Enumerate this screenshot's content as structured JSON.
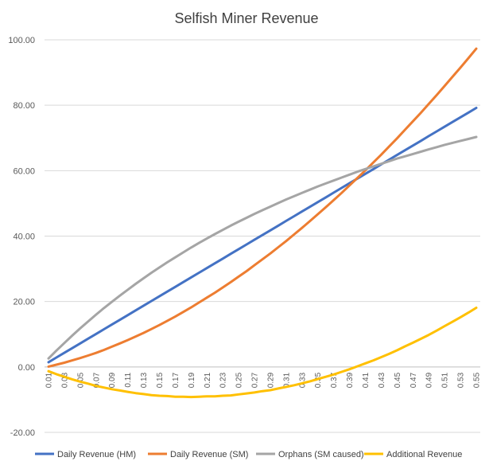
{
  "chart_data": {
    "type": "line",
    "title": "Selfish Miner Revenue",
    "xlabel": "",
    "ylabel": "",
    "ylim": [
      -20,
      100
    ],
    "ytick_labels": [
      "-20.00",
      "0.00",
      "20.00",
      "40.00",
      "60.00",
      "80.00",
      "100.00"
    ],
    "ytick_values": [
      -20,
      0,
      20,
      40,
      60,
      80,
      100
    ],
    "grid": true,
    "legend_position": "bottom",
    "x": [
      "0.01",
      "0.02",
      "0.03",
      "0.04",
      "0.05",
      "0.06",
      "0.07",
      "0.08",
      "0.09",
      "0.1",
      "0.11",
      "0.12",
      "0.13",
      "0.14",
      "0.15",
      "0.16",
      "0.17",
      "0.18",
      "0.19",
      "0.2",
      "0.21",
      "0.22",
      "0.23",
      "0.24",
      "0.25",
      "0.26",
      "0.27",
      "0.28",
      "0.29",
      "0.3",
      "0.31",
      "0.32",
      "0.33",
      "0.34",
      "0.35",
      "0.36",
      "0.37",
      "0.38",
      "0.39",
      "0.4",
      "0.41",
      "0.42",
      "0.43",
      "0.44",
      "0.45",
      "0.46",
      "0.47",
      "0.48",
      "0.49",
      "0.5",
      "0.51",
      "0.52",
      "0.53",
      "0.54",
      "0.55"
    ],
    "xtick_labels": [
      "0.01",
      "0.03",
      "0.05",
      "0.07",
      "0.09",
      "0.11",
      "0.13",
      "0.15",
      "0.17",
      "0.19",
      "0.21",
      "0.23",
      "0.25",
      "0.27",
      "0.29",
      "0.31",
      "0.33",
      "0.35",
      "0.37",
      "0.39",
      "0.41",
      "0.43",
      "0.45",
      "0.47",
      "0.49",
      "0.51",
      "0.53",
      "0.55"
    ],
    "series": [
      {
        "name": "Daily Revenue (HM)",
        "color": "#4472c4",
        "values": [
          1.44,
          2.88,
          4.32,
          5.76,
          7.2,
          8.64,
          10.08,
          11.52,
          12.96,
          14.4,
          15.84,
          17.28,
          18.72,
          20.16,
          21.6,
          23.04,
          24.48,
          25.92,
          27.36,
          28.8,
          30.24,
          31.68,
          33.12,
          34.56,
          36.0,
          37.44,
          38.88,
          40.32,
          41.76,
          43.2,
          44.64,
          46.08,
          47.52,
          48.96,
          50.4,
          51.84,
          53.28,
          54.72,
          56.16,
          57.6,
          59.04,
          60.48,
          61.92,
          63.36,
          64.8,
          66.24,
          67.68,
          69.12,
          70.56,
          72.0,
          73.44,
          74.88,
          76.32,
          77.76,
          79.2
        ]
      },
      {
        "name": "Daily Revenue (SM)",
        "color": "#ed7d31",
        "values": [
          0.1,
          0.7,
          1.3,
          2.0,
          2.7,
          3.5,
          4.3,
          5.2,
          6.2,
          7.2,
          8.2,
          9.3,
          10.4,
          11.6,
          12.8,
          14.1,
          15.4,
          16.8,
          18.2,
          19.7,
          21.2,
          22.7,
          24.3,
          25.9,
          27.6,
          29.3,
          31.1,
          32.9,
          34.7,
          36.6,
          38.5,
          40.5,
          42.5,
          44.6,
          46.7,
          48.8,
          51.0,
          53.2,
          55.5,
          57.8,
          60.1,
          62.5,
          64.9,
          67.4,
          69.9,
          72.5,
          75.1,
          77.7,
          80.4,
          83.1,
          85.9,
          88.7,
          91.5,
          94.4,
          97.3
        ]
      },
      {
        "name": "Orphans (SM caused)",
        "color": "#a5a5a5",
        "values": [
          2.6,
          5.0,
          7.3,
          9.6,
          11.8,
          13.9,
          16.0,
          18.0,
          19.9,
          21.8,
          23.6,
          25.4,
          27.1,
          28.8,
          30.4,
          32.0,
          33.5,
          35.0,
          36.5,
          37.9,
          39.3,
          40.6,
          41.9,
          43.2,
          44.4,
          45.6,
          46.8,
          47.9,
          49.0,
          50.1,
          51.2,
          52.2,
          53.2,
          54.2,
          55.2,
          56.1,
          57.0,
          57.9,
          58.8,
          59.7,
          60.5,
          61.3,
          62.1,
          62.9,
          63.7,
          64.4,
          65.1,
          65.8,
          66.5,
          67.2,
          67.9,
          68.5,
          69.1,
          69.7,
          70.3
        ]
      },
      {
        "name": "Additional Revenue",
        "color": "#ffc000",
        "values": [
          -1.3,
          -2.2,
          -3.0,
          -3.8,
          -4.5,
          -5.1,
          -5.8,
          -6.3,
          -6.8,
          -7.2,
          -7.6,
          -8.0,
          -8.3,
          -8.6,
          -8.8,
          -8.9,
          -9.1,
          -9.1,
          -9.2,
          -9.1,
          -9.0,
          -9.0,
          -8.8,
          -8.7,
          -8.4,
          -8.1,
          -7.8,
          -7.4,
          -7.1,
          -6.6,
          -6.1,
          -5.6,
          -5.0,
          -4.4,
          -3.7,
          -3.0,
          -2.3,
          -1.5,
          -0.7,
          0.2,
          1.1,
          2.0,
          3.0,
          4.0,
          5.1,
          6.3,
          7.4,
          8.6,
          9.8,
          11.1,
          12.5,
          13.8,
          15.2,
          16.6,
          18.1
        ]
      }
    ]
  }
}
